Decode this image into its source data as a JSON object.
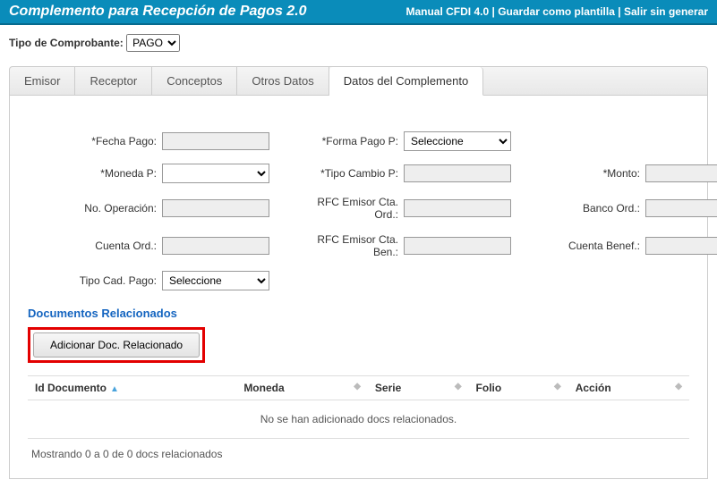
{
  "header": {
    "title": "Complemento para Recepción de Pagos  2.0",
    "links": {
      "manual": "Manual CFDI 4.0",
      "save_tpl": "Guardar como plantilla",
      "exit": "Salir sin generar"
    }
  },
  "comprobante": {
    "label": "Tipo de Comprobante:",
    "value": "PAGO"
  },
  "tabs": {
    "emisor": "Emisor",
    "receptor": "Receptor",
    "conceptos": "Conceptos",
    "otros": "Otros Datos",
    "complemento": "Datos del Complemento"
  },
  "form": {
    "fecha_pago": {
      "label": "*Fecha Pago:"
    },
    "forma_pago": {
      "label": "*Forma Pago P:",
      "value": "Seleccione"
    },
    "moneda_p": {
      "label": "*Moneda P:"
    },
    "tipo_cambio": {
      "label": "*Tipo Cambio P:"
    },
    "monto": {
      "label": "*Monto:"
    },
    "no_operacion": {
      "label": "No. Operación:"
    },
    "rfc_emisor_ord": {
      "label": "RFC Emisor Cta. Ord.:"
    },
    "banco_ord": {
      "label": "Banco Ord.:"
    },
    "cuenta_ord": {
      "label": "Cuenta Ord.:"
    },
    "rfc_emisor_ben": {
      "label": "RFC Emisor Cta. Ben.:"
    },
    "cuenta_benef": {
      "label": "Cuenta Benef.:"
    },
    "tipo_cad": {
      "label": "Tipo Cad. Pago:",
      "value": "Seleccione"
    }
  },
  "docs": {
    "section_title": "Documentos Relacionados",
    "add_btn": "Adicionar Doc. Relacionado",
    "cols": {
      "id": "Id Documento",
      "moneda": "Moneda",
      "serie": "Serie",
      "folio": "Folio",
      "accion": "Acción"
    },
    "empty": "No se han adicionado docs relacionados.",
    "footer": "Mostrando 0 a 0 de 0 docs relacionados"
  }
}
